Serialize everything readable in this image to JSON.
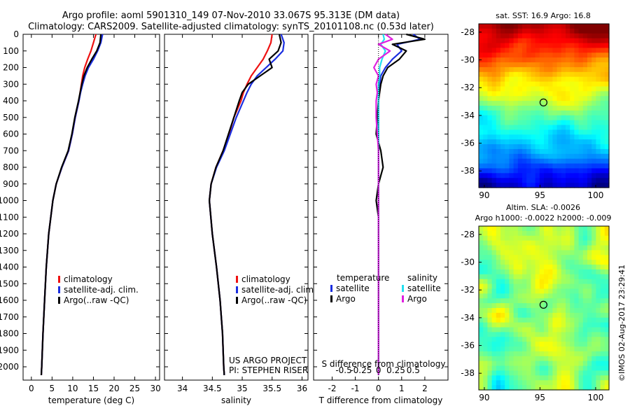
{
  "title_line1": "Argo profile: aoml 5901310_149 07-Nov-2010 33.067S 95.313E (DM data)",
  "title_line2": "Climatology: CARS2009. Satellite-adjusted climatology: synTS_20101108.nc (0.53d later)",
  "colors": {
    "climatology": "#ee1111",
    "satellite": "#1a2ee0",
    "argo": "#000000",
    "salinity_diff": "#22e0f0",
    "argo_sal_diff": "#e020e0"
  },
  "chart_data": [
    {
      "type": "line",
      "panel": "temperature",
      "xlabel": "temperature (deg C)",
      "xlim": [
        -2,
        31
      ],
      "xticks": [
        0,
        5,
        10,
        15,
        20,
        25,
        30
      ],
      "ylim": [
        0,
        2080
      ],
      "yticks": [
        0,
        100,
        200,
        300,
        400,
        500,
        600,
        700,
        800,
        900,
        1000,
        1100,
        1200,
        1300,
        1400,
        1500,
        1600,
        1700,
        1800,
        1900,
        2000
      ],
      "depth": [
        0,
        50,
        100,
        150,
        200,
        250,
        300,
        350,
        400,
        500,
        600,
        700,
        800,
        900,
        1000,
        1200,
        1400,
        1600,
        1800,
        2000,
        2050
      ],
      "series": [
        {
          "name": "climatology",
          "values": [
            15.6,
            15.0,
            14.4,
            13.6,
            12.9,
            12.4,
            12.1,
            11.8,
            11.5,
            10.6,
            9.9,
            9.0,
            7.4,
            6.0,
            5.2,
            4.2,
            3.6,
            3.2,
            2.8,
            2.5,
            2.4
          ]
        },
        {
          "name": "satellite-adj. clim.",
          "values": [
            17.2,
            16.8,
            16.0,
            15.0,
            13.8,
            13.0,
            12.4,
            11.9,
            11.5,
            10.6,
            9.9,
            9.0,
            7.4,
            6.0,
            5.2,
            4.2,
            3.6,
            3.2,
            2.8,
            2.5,
            2.4
          ]
        },
        {
          "name": "Argo(..raw -QC)",
          "values": [
            16.8,
            16.6,
            15.8,
            14.6,
            13.5,
            12.7,
            12.2,
            11.8,
            11.4,
            10.5,
            9.8,
            8.9,
            7.3,
            6.0,
            5.2,
            4.2,
            3.6,
            3.2,
            2.8,
            2.5,
            2.4
          ]
        }
      ],
      "legend": [
        "climatology",
        "satellite-adj. clim.",
        "Argo(..raw -QC)"
      ]
    },
    {
      "type": "line",
      "panel": "salinity",
      "xlabel": "salinity",
      "xlim": [
        33.7,
        36.1
      ],
      "xticks": [
        34,
        34.5,
        35,
        35.5,
        36
      ],
      "depth": [
        0,
        50,
        100,
        150,
        200,
        250,
        300,
        350,
        400,
        500,
        600,
        700,
        800,
        900,
        1000,
        1200,
        1400,
        1600,
        1800,
        2000,
        2050
      ],
      "series": [
        {
          "name": "climatology",
          "values": [
            35.5,
            35.48,
            35.42,
            35.35,
            35.25,
            35.15,
            35.08,
            35.02,
            34.98,
            34.86,
            34.78,
            34.68,
            34.56,
            34.48,
            34.45,
            34.5,
            34.57,
            34.63,
            34.67,
            34.69,
            34.7
          ]
        },
        {
          "name": "satellite-adj. clim.",
          "values": [
            35.65,
            35.7,
            35.68,
            35.55,
            35.4,
            35.25,
            35.15,
            35.08,
            35.02,
            34.9,
            34.8,
            34.7,
            34.57,
            34.48,
            34.45,
            34.5,
            34.57,
            34.63,
            34.67,
            34.69,
            34.7
          ]
        },
        {
          "name": "Argo(..raw -QC)",
          "values": [
            35.62,
            35.65,
            35.6,
            35.45,
            35.5,
            35.3,
            35.1,
            35.0,
            34.95,
            34.86,
            34.77,
            34.68,
            34.56,
            34.48,
            34.45,
            34.5,
            34.57,
            34.63,
            34.67,
            34.69,
            34.7
          ]
        }
      ],
      "legend": [
        "climatology",
        "satellite-adj. clim.",
        "Argo(..raw -QC)"
      ],
      "credit": [
        "US ARGO PROJECT",
        "PI: STEPHEN RISER"
      ]
    },
    {
      "type": "line",
      "panel": "differences",
      "xlabel": "T difference from climatology",
      "xlabel2": "S difference from climatology",
      "xlim": [
        -2.8,
        3.0
      ],
      "xticks": [
        -2,
        -1,
        0,
        1,
        2
      ],
      "xticks_s": [
        "-0.5",
        "-0.25",
        "0",
        "0.25",
        "0.5"
      ],
      "depth": [
        0,
        30,
        60,
        100,
        150,
        200,
        250,
        300,
        350,
        400,
        500,
        600,
        700,
        800,
        900,
        1000,
        1100,
        1200,
        1500,
        2000,
        2050
      ],
      "series": [
        {
          "name": "temperature satellite",
          "values": [
            1.5,
            1.8,
            0.8,
            1.0,
            0.6,
            0.3,
            0.1,
            0.05,
            0.0,
            0.0,
            0.0,
            0.0,
            0.0,
            0.0,
            0.0,
            0.0,
            0.0,
            0.0,
            0.0,
            0.0,
            0.0
          ]
        },
        {
          "name": "temperature Argo",
          "values": [
            1.2,
            2.0,
            0.6,
            1.2,
            0.9,
            0.4,
            0.2,
            0.1,
            0.05,
            0.0,
            -0.05,
            -0.1,
            0.1,
            0.2,
            0.0,
            -0.1,
            0.0,
            0.0,
            0.0,
            0.0,
            0.0
          ]
        },
        {
          "name": "salinity satellite",
          "values": [
            0.2,
            0.25,
            0.1,
            0.3,
            0.15,
            0.05,
            0.05,
            0.0,
            0.0,
            0.0,
            0.0,
            0.0,
            0.0,
            0.0,
            0.0,
            0.0,
            0.0,
            0.0,
            0.0,
            0.0,
            0.0
          ]
        },
        {
          "name": "salinity Argo",
          "values": [
            0.3,
            0.6,
            0.0,
            0.5,
            0.0,
            -0.2,
            0.0,
            -0.1,
            -0.05,
            -0.1,
            -0.1,
            -0.05,
            0.0,
            0.0,
            0.0,
            0.0,
            0.0,
            0.0,
            0.0,
            0.0,
            0.0
          ]
        }
      ],
      "legend_titles": [
        "temperature",
        "salinity"
      ],
      "legend": [
        "satellite",
        "Argo",
        "satellite",
        "Argo"
      ]
    },
    {
      "type": "heatmap",
      "panel": "sst_map",
      "title": "sat. SST: 16.9 Argo: 16.8",
      "xticks": [
        90,
        95,
        100
      ],
      "yticks": [
        -28,
        -30,
        -32,
        -34,
        -36,
        -38
      ],
      "xlim": [
        89.5,
        101.2
      ],
      "ylim": [
        -39.2,
        -27.4
      ],
      "marker": {
        "lon": 95.313,
        "lat": -33.067
      }
    },
    {
      "type": "heatmap",
      "panel": "sla_map",
      "title_line1": "Altim. SLA: -0.0026",
      "title_line2": "Argo h1000: -0.0022 h2000: -0.009",
      "xticks": [
        90,
        95,
        100
      ],
      "yticks": [
        -28,
        -30,
        -32,
        -34,
        -36,
        -38
      ],
      "xlim": [
        89.5,
        101.2
      ],
      "ylim": [
        -39.2,
        -27.4
      ],
      "marker": {
        "lon": 95.313,
        "lat": -33.067
      }
    }
  ],
  "imos_stamp": "©IMOS 02-Aug-2017 23:29:41"
}
